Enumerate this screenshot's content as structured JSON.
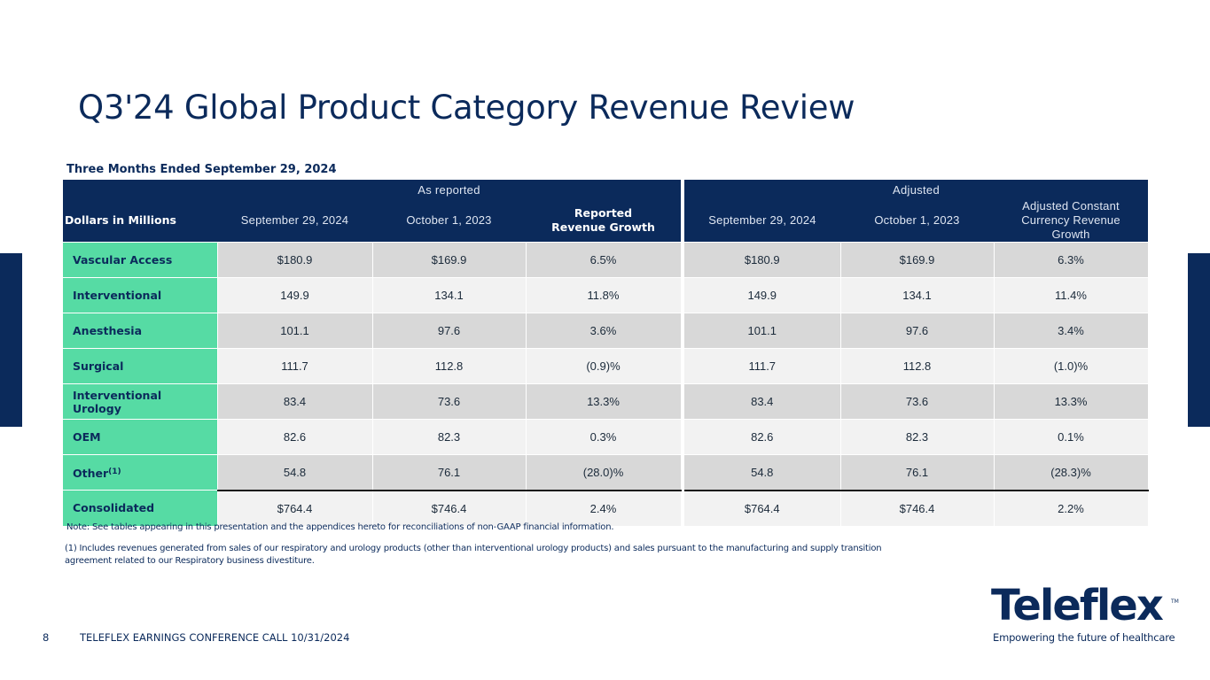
{
  "slide": {
    "title": "Q3'24 Global Product Category Revenue Review",
    "subtitle": "Three Months Ended September 29, 2024",
    "page_number": "8",
    "footer": "TELEFLEX EARNINGS CONFERENCE CALL 10/31/2024"
  },
  "table": {
    "group_as_reported": "As reported",
    "group_adjusted": "Adjusted",
    "row_header": "Dollars in Millions",
    "col_rep_current": "September 29, 2024",
    "col_rep_prior": "October 1, 2023",
    "col_rep_growth_line1": "Reported",
    "col_rep_growth_line2": "Revenue Growth",
    "col_adj_current": "September 29, 2024",
    "col_adj_prior": "October 1, 2023",
    "col_adj_growth": "Adjusted Constant Currency Revenue Growth",
    "rows": [
      {
        "label": "Vascular Access",
        "rep_current": "$180.9",
        "rep_prior": "$169.9",
        "rep_growth": "6.5%",
        "adj_current": "$180.9",
        "adj_prior": "$169.9",
        "adj_growth": "6.3%"
      },
      {
        "label": "Interventional",
        "rep_current": "149.9",
        "rep_prior": "134.1",
        "rep_growth": "11.8%",
        "adj_current": "149.9",
        "adj_prior": "134.1",
        "adj_growth": "11.4%"
      },
      {
        "label": "Anesthesia",
        "rep_current": "101.1",
        "rep_prior": "97.6",
        "rep_growth": "3.6%",
        "adj_current": "101.1",
        "adj_prior": "97.6",
        "adj_growth": "3.4%"
      },
      {
        "label": "Surgical",
        "rep_current": "111.7",
        "rep_prior": "112.8",
        "rep_growth": "(0.9)%",
        "adj_current": "111.7",
        "adj_prior": "112.8",
        "adj_growth": "(1.0)%"
      },
      {
        "label": "Interventional Urology",
        "rep_current": "83.4",
        "rep_prior": "73.6",
        "rep_growth": "13.3%",
        "adj_current": "83.4",
        "adj_prior": "73.6",
        "adj_growth": "13.3%"
      },
      {
        "label": "OEM",
        "rep_current": "82.6",
        "rep_prior": "82.3",
        "rep_growth": "0.3%",
        "adj_current": "82.6",
        "adj_prior": "82.3",
        "adj_growth": "0.1%"
      },
      {
        "label": "Other",
        "footnote_mark": "(1)",
        "rep_current": "54.8",
        "rep_prior": "76.1",
        "rep_growth": "(28.0)%",
        "adj_current": "54.8",
        "adj_prior": "76.1",
        "adj_growth": "(28.3)%"
      },
      {
        "label": "Consolidated",
        "rep_current": "$764.4",
        "rep_prior": "$746.4",
        "rep_growth": "2.4%",
        "adj_current": "$764.4",
        "adj_prior": "$746.4",
        "adj_growth": "2.2%"
      }
    ]
  },
  "notes": {
    "note": "Note: See tables appearing in this presentation and the appendices hereto for reconciliations of non-GAAP financial information.",
    "footnote_1": "(1) Includes revenues generated from sales of our respiratory and urology products (other than interventional urology products) and sales pursuant to the manufacturing and supply transition agreement related to our Respiratory business divestiture."
  },
  "logo": {
    "wordmark": "Teleflex",
    "trademark": "TM",
    "tagline": "Empowering the future of healthcare"
  },
  "colors": {
    "navy": "#0b2a5b",
    "category_green": "#56dba4",
    "row_shade_dark": "#d8d8d8",
    "row_shade_light": "#f2f2f2"
  }
}
